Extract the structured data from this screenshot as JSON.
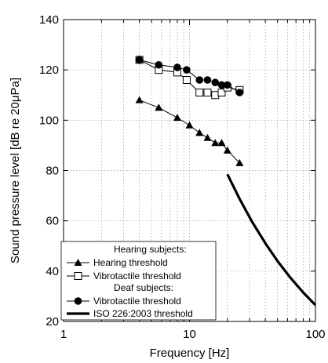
{
  "chart_data": {
    "type": "line",
    "xlabel": "Frequency [Hz]",
    "ylabel": "Sound pressure level [dB re 20μPa]",
    "xscale": "log",
    "xlim": [
      1,
      100
    ],
    "ylim": [
      20,
      140
    ],
    "x_ticks": [
      1,
      10,
      100
    ],
    "x_tick_labels": [
      "1",
      "10",
      "100"
    ],
    "y_ticks": [
      20,
      40,
      60,
      80,
      100,
      120,
      140
    ],
    "y_tick_labels": [
      "20",
      "40",
      "60",
      "80",
      "100",
      "120",
      "140"
    ],
    "grid": "dotted",
    "legend_position": "bottom-left",
    "legend": {
      "group_hearing": "Hearing subjects:",
      "group_deaf": "Deaf subjects:"
    },
    "series": [
      {
        "name": "Hearing threshold",
        "marker": "filled-triangle",
        "color": "#000000",
        "x": [
          4,
          5.7,
          8,
          10,
          12,
          13.9,
          16,
          18,
          20,
          25
        ],
        "y": [
          108,
          105,
          101,
          98,
          95,
          93,
          91,
          91,
          88,
          83
        ]
      },
      {
        "name": "Vibrotactile threshold",
        "group": "hearing",
        "marker": "open-square",
        "color": "#000000",
        "x": [
          4,
          5.7,
          8,
          9.5,
          12,
          13.9,
          16,
          18,
          20,
          25
        ],
        "y": [
          124,
          120,
          119,
          116,
          111,
          111,
          110,
          111,
          113,
          112
        ]
      },
      {
        "name": "Vibrotactile threshold",
        "group": "deaf",
        "marker": "filled-circle",
        "color": "#000000",
        "x": [
          4,
          5.7,
          8,
          9.5,
          12,
          13.9,
          16,
          18,
          20,
          25
        ],
        "y": [
          124,
          122,
          121,
          120,
          116,
          116,
          115,
          114,
          114,
          111
        ]
      },
      {
        "name": "ISO 226:2003 threshold",
        "marker": "none",
        "line": "thick",
        "color": "#000000",
        "x": [
          20,
          25,
          31.5,
          40,
          50,
          63,
          80,
          100
        ],
        "y": [
          78.5,
          68.7,
          59.5,
          51.1,
          44,
          37.5,
          31.5,
          26.5
        ]
      }
    ]
  }
}
